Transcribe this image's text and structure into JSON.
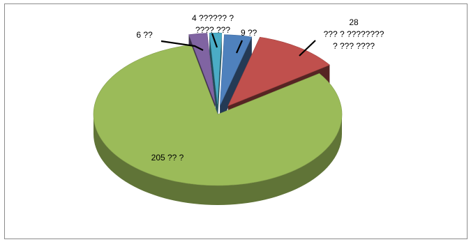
{
  "chart_data": {
    "type": "pie",
    "style": "3d-exploded",
    "title": "",
    "legend": "none",
    "slices": [
      {
        "value": 9,
        "label_lines": [
          "9 ??"
        ],
        "color": "#4f81bd"
      },
      {
        "value": 28,
        "label_lines": [
          "28",
          "??? ? ????????",
          "? ??? ????"
        ],
        "color": "#c0504d"
      },
      {
        "value": 205,
        "label_lines": [
          "205 ?? ?"
        ],
        "color": "#9bbb59"
      },
      {
        "value": 6,
        "label_lines": [
          "6 ??"
        ],
        "color": "#8064a2"
      },
      {
        "value": 4,
        "label_lines": [
          "4 ?????? ?",
          "???? ???"
        ],
        "color": "#4bacc6"
      }
    ]
  }
}
